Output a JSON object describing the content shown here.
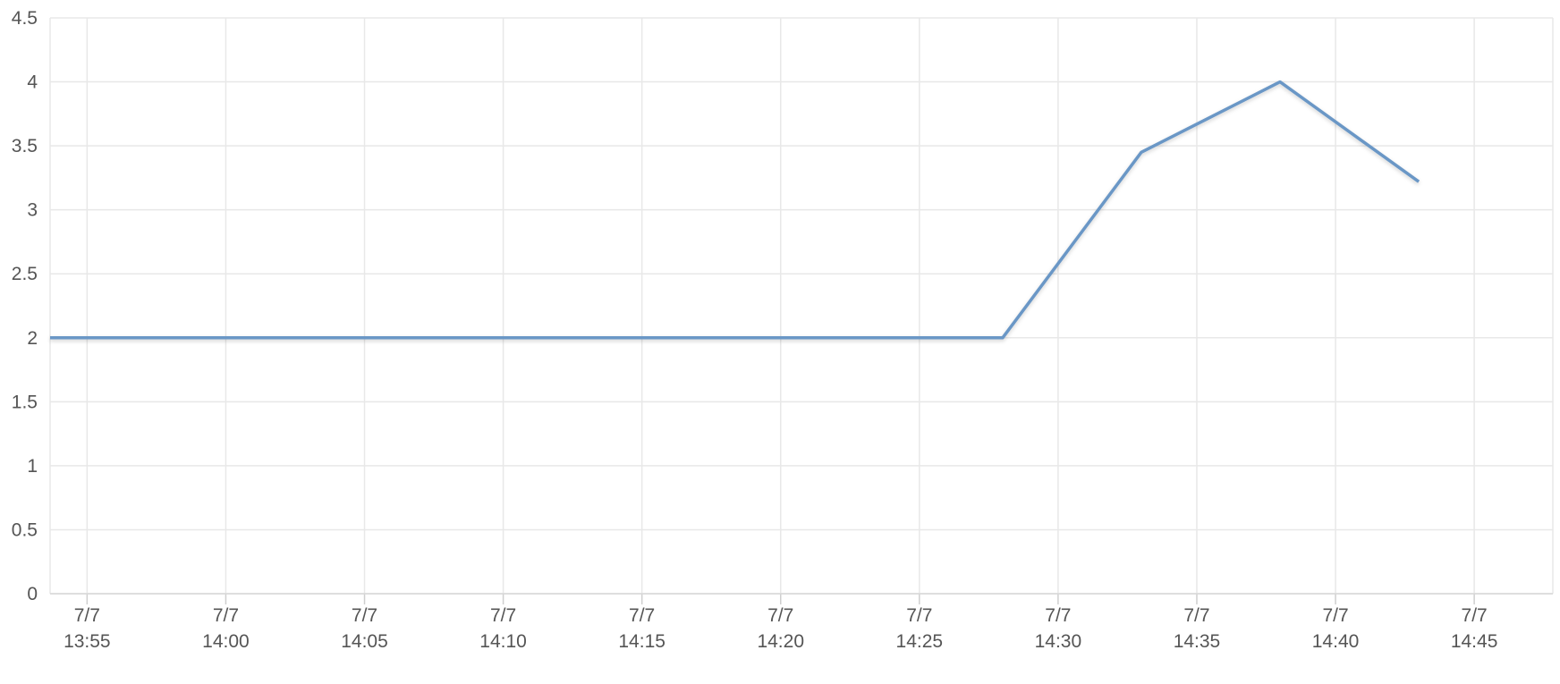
{
  "chart_data": {
    "type": "line",
    "title": "",
    "xlabel": "",
    "ylabel": "",
    "ylim": [
      0,
      4.5
    ],
    "y_ticks": [
      "0",
      "0.5",
      "1",
      "1.5",
      "2",
      "2.5",
      "3",
      "3.5",
      "4",
      "4.5"
    ],
    "x_ticks": [
      {
        "date": "7/7",
        "time": "13:55"
      },
      {
        "date": "7/7",
        "time": "14:00"
      },
      {
        "date": "7/7",
        "time": "14:05"
      },
      {
        "date": "7/7",
        "time": "14:10"
      },
      {
        "date": "7/7",
        "time": "14:15"
      },
      {
        "date": "7/7",
        "time": "14:20"
      },
      {
        "date": "7/7",
        "time": "14:25"
      },
      {
        "date": "7/7",
        "time": "14:30"
      },
      {
        "date": "7/7",
        "time": "14:35"
      },
      {
        "date": "7/7",
        "time": "14:40"
      },
      {
        "date": "7/7",
        "time": "14:45"
      }
    ],
    "x_range": [
      "13:53:40",
      "14:47:50"
    ],
    "grid": true,
    "legend": "none",
    "series": [
      {
        "color": "#6b97c6",
        "x": [
          "13:53:40",
          "14:28:00",
          "14:33:00",
          "14:38:00",
          "14:43:00"
        ],
        "y": [
          2,
          2,
          3.45,
          4,
          3.22
        ]
      }
    ]
  }
}
